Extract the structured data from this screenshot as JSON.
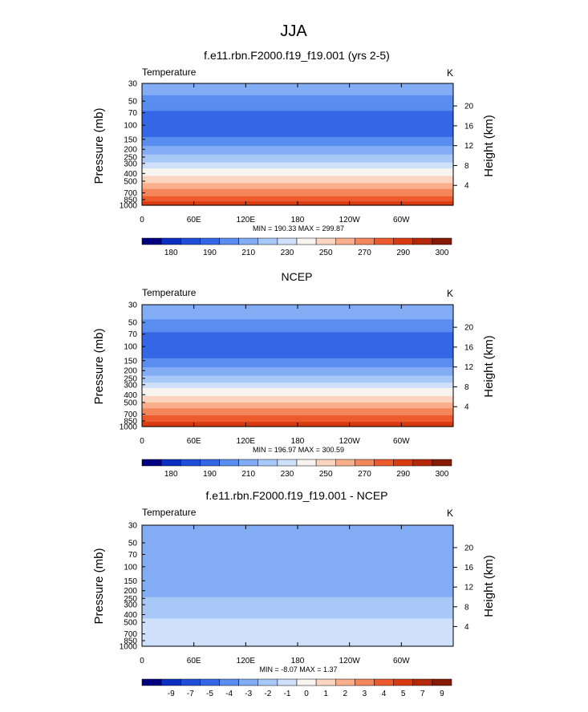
{
  "main_title": "JJA",
  "chart_data": [
    {
      "type": "heatmap",
      "title": "f.e11.rbn.F2000.f19_f19.001 (yrs 2-5)",
      "field_label": "Temperature",
      "units": "K",
      "ylabel": "Pressure (mb)",
      "ylabel_right": "Height (km)",
      "pressure_ticks": [
        30,
        50,
        70,
        100,
        150,
        200,
        250,
        300,
        400,
        500,
        700,
        850,
        1000
      ],
      "height_ticks": [
        4,
        8,
        12,
        16,
        20
      ],
      "x_tick_labels": [
        "0",
        "60E",
        "120E",
        "180",
        "120W",
        "60W"
      ],
      "x_ticks_deg": [
        0,
        60,
        120,
        180,
        240,
        300
      ],
      "xlim": [
        0,
        360
      ],
      "ylim": [
        30,
        1000
      ],
      "log_pressure_axis": true,
      "stats_text": "MIN = 190.33  MAX = 299.87",
      "colorbar": {
        "labels": [
          "180",
          "190",
          "210",
          "230",
          "250",
          "270",
          "290",
          "300"
        ],
        "colors": [
          "#000080",
          "#0b2fc0",
          "#1f4fd8",
          "#3566e6",
          "#5a8df0",
          "#82acf4",
          "#a8c8f8",
          "#cfe0fb",
          "#f7f3ee",
          "#fbd5bf",
          "#f9af8c",
          "#f4865c",
          "#ec5b2e",
          "#d93a10",
          "#b32808",
          "#861a04"
        ]
      },
      "profile": {
        "pressure": [
          30,
          50,
          70,
          100,
          150,
          200,
          250,
          300,
          400,
          500,
          700,
          850,
          1000
        ],
        "value": [
          220,
          212,
          205,
          200,
          207,
          217,
          225,
          233,
          245,
          255,
          270,
          280,
          290
        ]
      }
    },
    {
      "type": "heatmap",
      "title": "NCEP",
      "field_label": "Temperature",
      "units": "K",
      "ylabel": "Pressure (mb)",
      "ylabel_right": "Height (km)",
      "pressure_ticks": [
        30,
        50,
        70,
        100,
        150,
        200,
        250,
        300,
        400,
        500,
        700,
        850,
        1000
      ],
      "height_ticks": [
        4,
        8,
        12,
        16,
        20
      ],
      "x_tick_labels": [
        "0",
        "60E",
        "120E",
        "180",
        "120W",
        "60W"
      ],
      "x_ticks_deg": [
        0,
        60,
        120,
        180,
        240,
        300
      ],
      "xlim": [
        0,
        360
      ],
      "ylim": [
        30,
        1000
      ],
      "log_pressure_axis": true,
      "stats_text": "MIN = 196.97  MAX = 300.59",
      "colorbar": {
        "labels": [
          "180",
          "190",
          "210",
          "230",
          "250",
          "270",
          "290",
          "300"
        ],
        "colors": [
          "#000080",
          "#0b2fc0",
          "#1f4fd8",
          "#3566e6",
          "#5a8df0",
          "#82acf4",
          "#a8c8f8",
          "#cfe0fb",
          "#f7f3ee",
          "#fbd5bf",
          "#f9af8c",
          "#f4865c",
          "#ec5b2e",
          "#d93a10",
          "#b32808",
          "#861a04"
        ]
      },
      "profile": {
        "pressure": [
          30,
          50,
          70,
          100,
          150,
          200,
          250,
          300,
          400,
          500,
          700,
          850,
          1000
        ],
        "value": [
          222,
          212,
          205,
          201,
          207,
          217,
          226,
          235,
          247,
          257,
          272,
          282,
          292
        ]
      }
    },
    {
      "type": "heatmap",
      "title": "f.e11.rbn.F2000.f19_f19.001 - NCEP",
      "field_label": "Temperature",
      "units": "K",
      "ylabel": "Pressure (mb)",
      "ylabel_right": "Height (km)",
      "pressure_ticks": [
        30,
        50,
        70,
        100,
        150,
        200,
        250,
        300,
        400,
        500,
        700,
        850,
        1000
      ],
      "height_ticks": [
        4,
        8,
        12,
        16,
        20
      ],
      "x_tick_labels": [
        "0",
        "60E",
        "120E",
        "180",
        "120W",
        "60W"
      ],
      "x_ticks_deg": [
        0,
        60,
        120,
        180,
        240,
        300
      ],
      "xlim": [
        0,
        360
      ],
      "ylim": [
        30,
        1000
      ],
      "log_pressure_axis": true,
      "stats_text": "MIN = -8.07  MAX = 1.37",
      "colorbar": {
        "labels": [
          "-9",
          "-7",
          "-5",
          "-4",
          "-3",
          "-2",
          "-1",
          "0",
          "1",
          "2",
          "3",
          "4",
          "5",
          "7",
          "9"
        ],
        "colors": [
          "#000080",
          "#0b2fc0",
          "#1f4fd8",
          "#3566e6",
          "#5a8df0",
          "#82acf4",
          "#a8c8f8",
          "#cfe0fb",
          "#f7f3ee",
          "#fbd5bf",
          "#f9af8c",
          "#f4865c",
          "#ec5b2e",
          "#d93a10",
          "#b32808",
          "#861a04"
        ]
      },
      "profile": {
        "pressure": [
          30,
          50,
          70,
          100,
          150,
          200,
          250,
          300,
          400,
          500,
          700,
          850,
          1000
        ],
        "value": [
          -3.5,
          -3.5,
          -3.5,
          -3.5,
          -3.2,
          -3,
          -2.5,
          -1.5,
          -1.5,
          -1,
          -1.2,
          -0.8,
          -0.5
        ]
      }
    }
  ]
}
